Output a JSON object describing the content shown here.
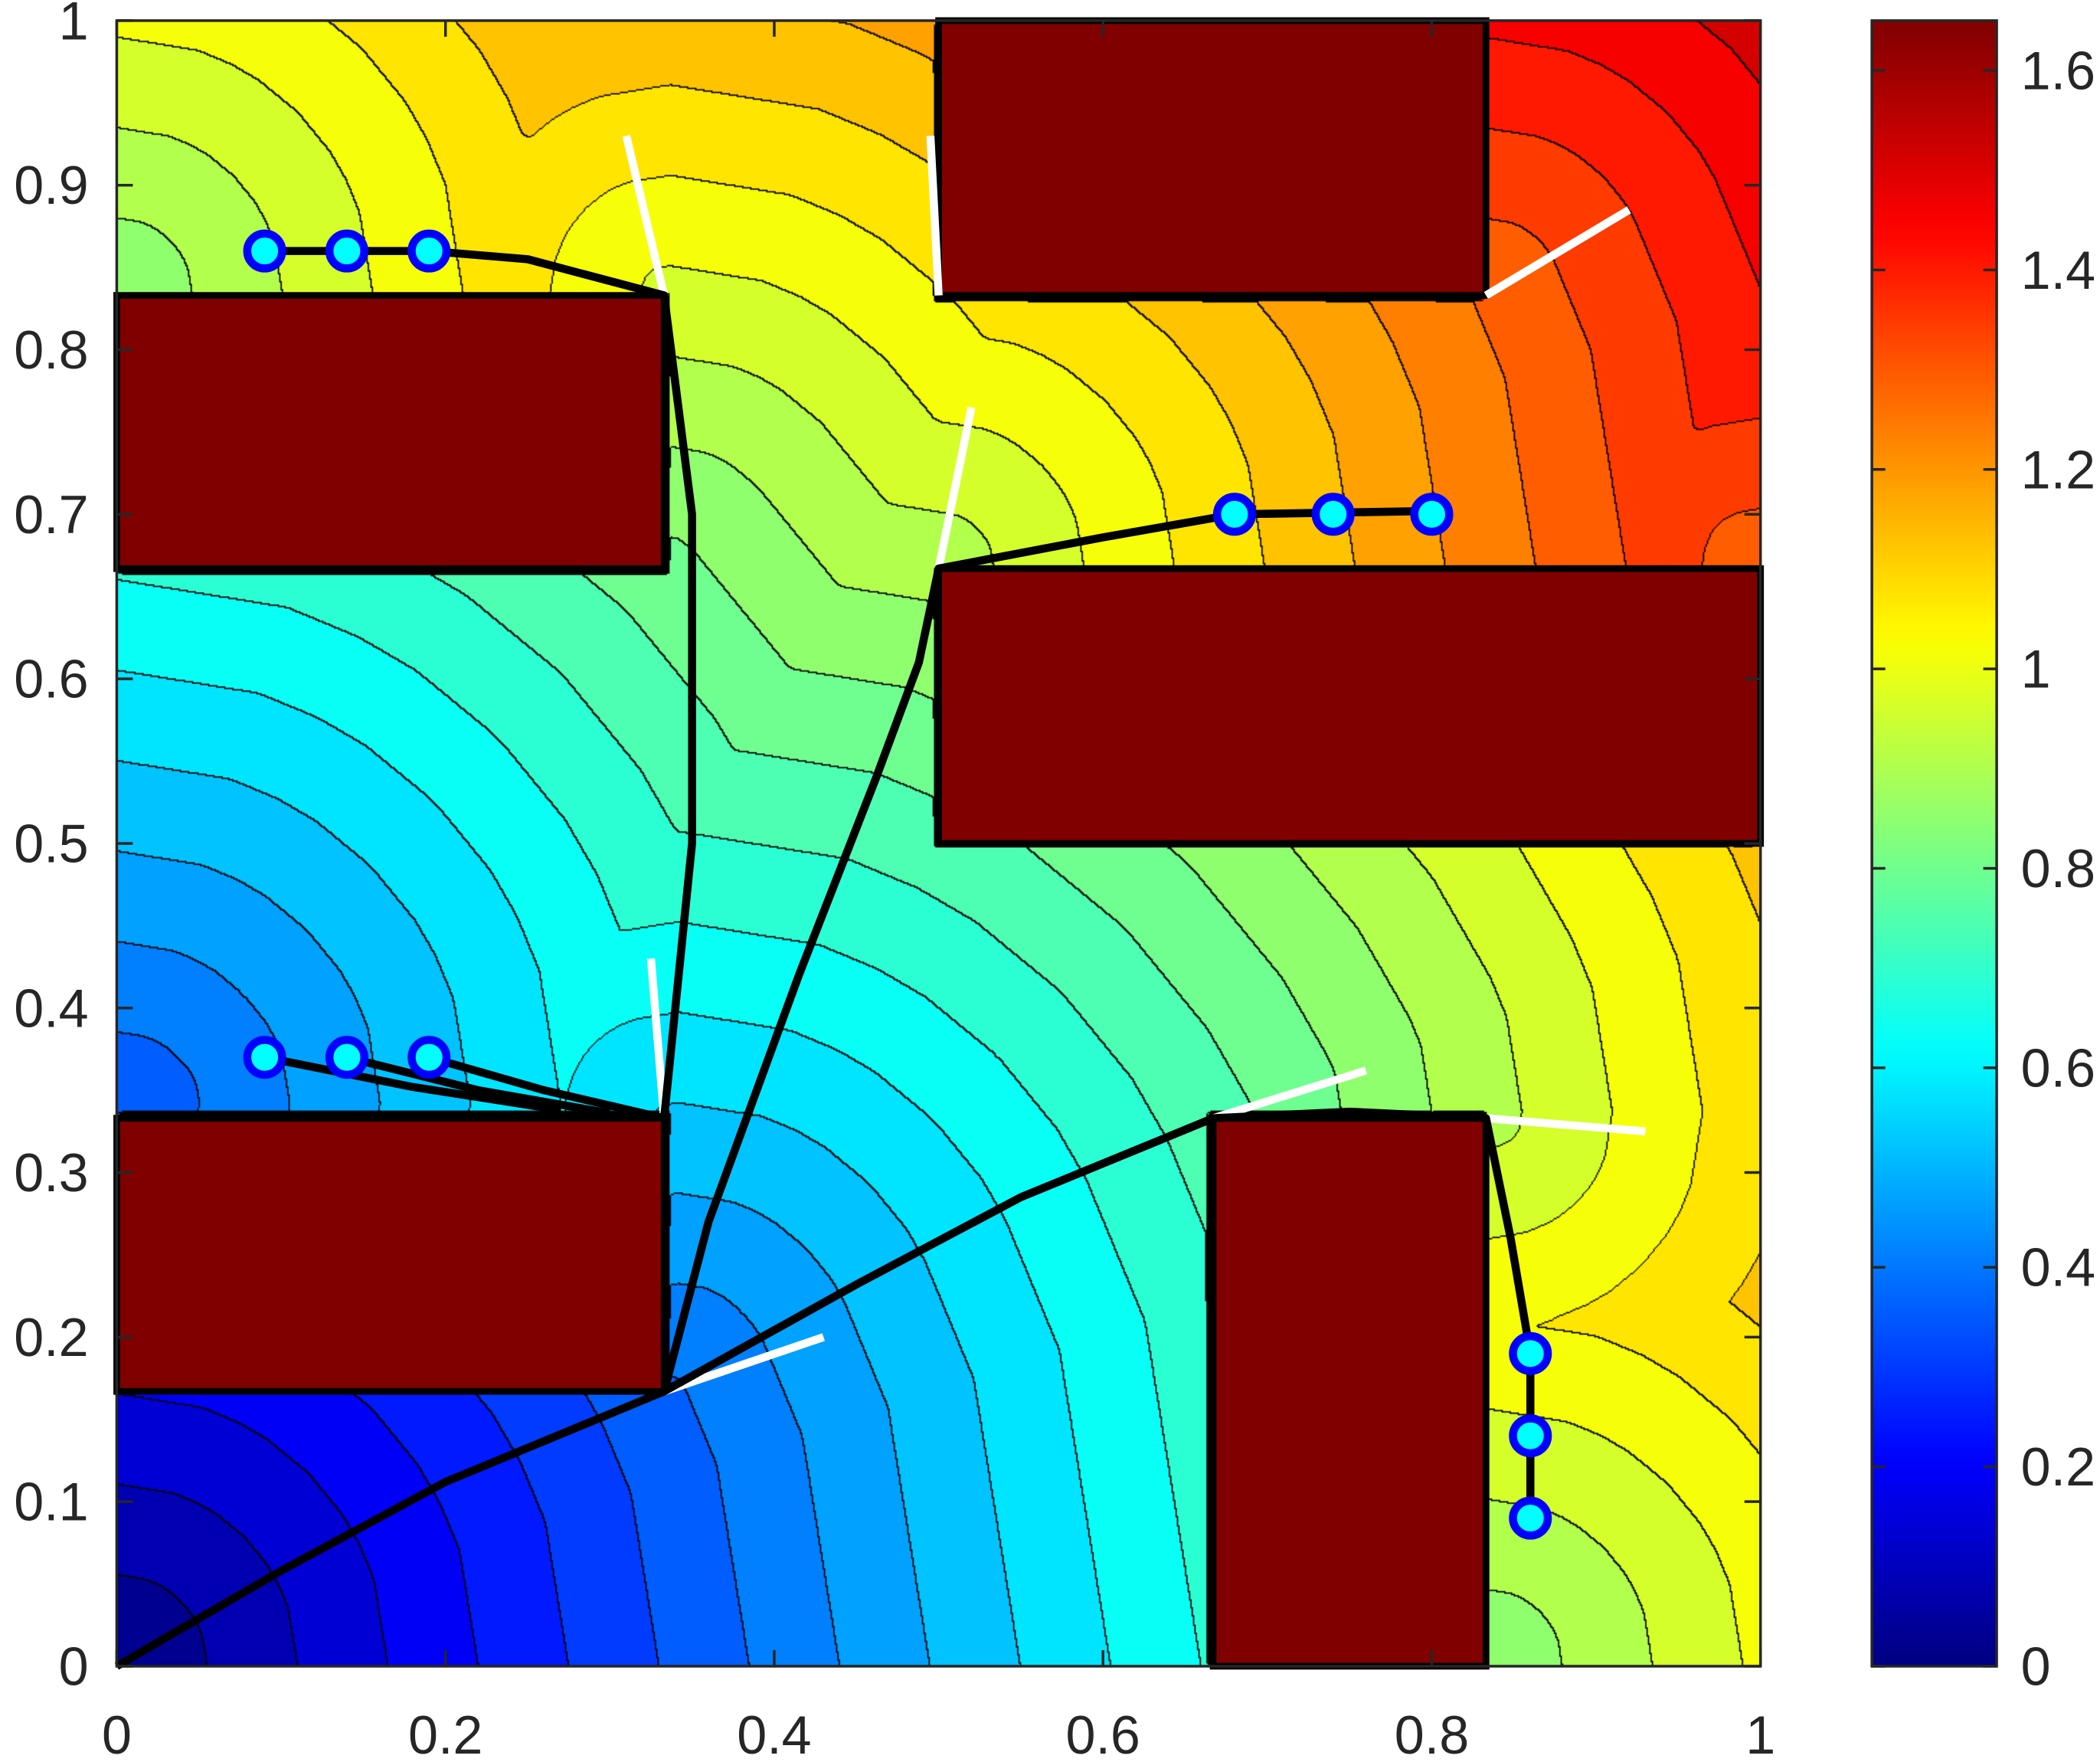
{
  "chart_data": {
    "type": "heatmap",
    "subtype": "filled-contour with geodesic distance field, obstacles, paths and start points",
    "xlim": [
      0,
      1
    ],
    "ylim": [
      0,
      1
    ],
    "clim": [
      0,
      1.65
    ],
    "contour_step": 0.055,
    "colormap": "jet",
    "x_ticks": [
      "0",
      "0.2",
      "0.4",
      "0.6",
      "0.8",
      "1"
    ],
    "x_tick_values": [
      0,
      0.2,
      0.4,
      0.6,
      0.8,
      1
    ],
    "y_ticks": [
      "0",
      "0.1",
      "0.2",
      "0.3",
      "0.4",
      "0.5",
      "0.6",
      "0.7",
      "0.8",
      "0.9",
      "1"
    ],
    "y_tick_values": [
      0,
      0.1,
      0.2,
      0.3,
      0.4,
      0.5,
      0.6,
      0.7,
      0.8,
      0.9,
      1
    ],
    "colorbar_ticks": [
      "0",
      "0.2",
      "0.4",
      "0.6",
      "0.8",
      "1",
      "1.2",
      "1.4",
      "1.6"
    ],
    "colorbar_tick_values": [
      0,
      0.2,
      0.4,
      0.6,
      0.8,
      1,
      1.2,
      1.4,
      1.6
    ],
    "source": [
      0,
      0
    ],
    "obstacles": [
      {
        "x": [
          0,
          0.333
        ],
        "y": [
          0.667,
          0.833
        ]
      },
      {
        "x": [
          0.5,
          0.833
        ],
        "y": [
          0.833,
          1
        ]
      },
      {
        "x": [
          0.5,
          1
        ],
        "y": [
          0.5,
          0.667
        ]
      },
      {
        "x": [
          0,
          0.333
        ],
        "y": [
          0.167,
          0.333
        ]
      },
      {
        "x": [
          0.667,
          0.833
        ],
        "y": [
          0,
          0.333
        ]
      }
    ],
    "start_points": [
      [
        0.09,
        0.86
      ],
      [
        0.14,
        0.86
      ],
      [
        0.19,
        0.86
      ],
      [
        0.68,
        0.7
      ],
      [
        0.74,
        0.7
      ],
      [
        0.8,
        0.7
      ],
      [
        0.09,
        0.37
      ],
      [
        0.14,
        0.37
      ],
      [
        0.19,
        0.37
      ],
      [
        0.86,
        0.19
      ],
      [
        0.86,
        0.14
      ],
      [
        0.86,
        0.09
      ]
    ],
    "paths": [
      [
        [
          0,
          0
        ],
        [
          0.1,
          0.058
        ],
        [
          0.2,
          0.112
        ],
        [
          0.333,
          0.167
        ],
        [
          0.45,
          0.232
        ],
        [
          0.55,
          0.285
        ],
        [
          0.667,
          0.333
        ],
        [
          0.75,
          0.337
        ],
        [
          0.833,
          0.333
        ],
        [
          0.848,
          0.26
        ],
        [
          0.86,
          0.19
        ],
        [
          0.86,
          0.14
        ],
        [
          0.86,
          0.09
        ]
      ],
      [
        [
          0.333,
          0.167
        ],
        [
          0.36,
          0.27
        ],
        [
          0.415,
          0.42
        ],
        [
          0.462,
          0.54
        ],
        [
          0.488,
          0.61
        ],
        [
          0.5,
          0.667
        ],
        [
          0.6,
          0.686
        ],
        [
          0.68,
          0.7
        ],
        [
          0.74,
          0.701
        ],
        [
          0.8,
          0.702
        ]
      ],
      [
        [
          0.333,
          0.333
        ],
        [
          0.35,
          0.5
        ],
        [
          0.35,
          0.7
        ],
        [
          0.333,
          0.833
        ],
        [
          0.25,
          0.855
        ],
        [
          0.19,
          0.86
        ],
        [
          0.14,
          0.86
        ],
        [
          0.09,
          0.86
        ]
      ],
      [
        [
          0.333,
          0.333
        ],
        [
          0.26,
          0.35
        ],
        [
          0.19,
          0.37
        ]
      ],
      [
        [
          0.3,
          0.336
        ],
        [
          0.22,
          0.35
        ],
        [
          0.14,
          0.37
        ]
      ],
      [
        [
          0.27,
          0.338
        ],
        [
          0.18,
          0.352
        ],
        [
          0.09,
          0.37
        ]
      ]
    ],
    "tangent_segments": [
      [
        [
          0.333,
          0.167
        ],
        [
          0.43,
          0.2
        ]
      ],
      [
        [
          0.333,
          0.333
        ],
        [
          0.325,
          0.43
        ]
      ],
      [
        [
          0.333,
          0.833
        ],
        [
          0.31,
          0.93
        ]
      ],
      [
        [
          0.5,
          0.833
        ],
        [
          0.495,
          0.93
        ]
      ],
      [
        [
          0.5,
          0.667
        ],
        [
          0.52,
          0.765
        ]
      ],
      [
        [
          0.833,
          0.833
        ],
        [
          0.92,
          0.885
        ]
      ],
      [
        [
          0.667,
          0.333
        ],
        [
          0.76,
          0.362
        ]
      ],
      [
        [
          0.833,
          0.333
        ],
        [
          0.93,
          0.325
        ]
      ]
    ],
    "colors": {
      "obstacle": "#800000",
      "marker_edge": "#0000ff",
      "marker_fill": "#00ffff",
      "path": "#000000",
      "tangent": "#ffffff"
    }
  }
}
